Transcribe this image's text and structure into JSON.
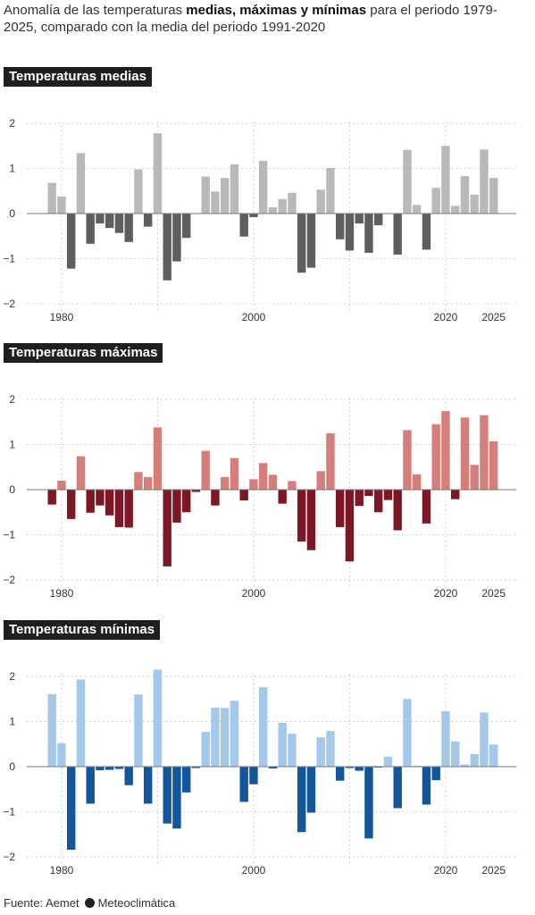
{
  "title": {
    "prefix": "Anomalía de las temperaturas ",
    "bold": "medias, máximas y mínimas",
    "suffix": " para el periodo 1979-2025, comparado con la media del periodo 1991-2020"
  },
  "source": {
    "text": "Fuente: Aemet",
    "brand": "Meteoclimática"
  },
  "chart_data": [
    {
      "type": "bar",
      "title": "Temperaturas medias",
      "x_ticks": [
        1980,
        2000,
        2020,
        2025
      ],
      "y_ticks": [
        2,
        1,
        0,
        -1,
        -2
      ],
      "ylim": [
        -2,
        2
      ],
      "grid": true,
      "colors": {
        "positive": "#b9b9b9",
        "negative": "#5e5e5e"
      },
      "x": [
        1979,
        1980,
        1981,
        1982,
        1983,
        1984,
        1985,
        1986,
        1987,
        1988,
        1989,
        1990,
        1991,
        1992,
        1993,
        1994,
        1995,
        1996,
        1997,
        1998,
        1999,
        2000,
        2001,
        2002,
        2003,
        2004,
        2005,
        2006,
        2007,
        2008,
        2009,
        2010,
        2011,
        2012,
        2013,
        2014,
        2015,
        2016,
        2017,
        2018,
        2019,
        2020,
        2021,
        2022,
        2023,
        2024,
        2025
      ],
      "values": [
        0.68,
        0.38,
        -1.22,
        1.34,
        -0.67,
        -0.22,
        -0.32,
        -0.43,
        -0.63,
        0.98,
        -0.29,
        1.78,
        -1.48,
        -1.06,
        -0.54,
        0.0,
        0.82,
        0.49,
        0.79,
        1.09,
        -0.51,
        -0.08,
        1.17,
        0.14,
        0.32,
        0.46,
        -1.31,
        -1.2,
        0.53,
        1.01,
        -0.57,
        -0.82,
        -0.22,
        -0.87,
        -0.26,
        0.0,
        -0.91,
        1.41,
        0.19,
        -0.8,
        0.57,
        1.5,
        0.17,
        0.83,
        0.42,
        1.42,
        0.79
      ]
    },
    {
      "type": "bar",
      "title": "Temperaturas máximas",
      "x_ticks": [
        1980,
        2000,
        2020,
        2025
      ],
      "y_ticks": [
        2,
        1,
        0,
        -1,
        -2
      ],
      "ylim": [
        -2,
        2
      ],
      "grid": true,
      "colors": {
        "positive": "#d47f7a",
        "negative": "#7d1725"
      },
      "x": [
        1979,
        1980,
        1981,
        1982,
        1983,
        1984,
        1985,
        1986,
        1987,
        1988,
        1989,
        1990,
        1991,
        1992,
        1993,
        1994,
        1995,
        1996,
        1997,
        1998,
        1999,
        2000,
        2001,
        2002,
        2003,
        2004,
        2005,
        2006,
        2007,
        2008,
        2009,
        2010,
        2011,
        2012,
        2013,
        2014,
        2015,
        2016,
        2017,
        2018,
        2019,
        2020,
        2021,
        2022,
        2023,
        2024,
        2025
      ],
      "values": [
        -0.33,
        0.2,
        -0.65,
        0.74,
        -0.51,
        -0.35,
        -0.57,
        -0.83,
        -0.84,
        0.39,
        0.28,
        1.38,
        -1.7,
        -0.73,
        -0.5,
        -0.05,
        0.86,
        -0.35,
        0.28,
        0.7,
        -0.24,
        0.23,
        0.59,
        0.33,
        -0.31,
        0.19,
        -1.15,
        -1.34,
        0.41,
        1.25,
        -0.83,
        -1.59,
        -0.36,
        -0.14,
        -0.5,
        -0.23,
        -0.9,
        1.32,
        0.34,
        -0.75,
        1.45,
        1.74,
        -0.21,
        1.6,
        0.55,
        1.65,
        1.07
      ]
    },
    {
      "type": "bar",
      "title": "Temperaturas mínimas",
      "x_ticks": [
        1980,
        2000,
        2020,
        2025
      ],
      "y_ticks": [
        2,
        1,
        0,
        -1,
        -2
      ],
      "ylim": [
        -2,
        2
      ],
      "grid": true,
      "colors": {
        "positive": "#a3c8e9",
        "negative": "#12569e"
      },
      "x": [
        1979,
        1980,
        1981,
        1982,
        1983,
        1984,
        1985,
        1986,
        1987,
        1988,
        1989,
        1990,
        1991,
        1992,
        1993,
        1994,
        1995,
        1996,
        1997,
        1998,
        1999,
        2000,
        2001,
        2002,
        2003,
        2004,
        2005,
        2006,
        2007,
        2008,
        2009,
        2010,
        2011,
        2012,
        2013,
        2014,
        2015,
        2016,
        2017,
        2018,
        2019,
        2020,
        2021,
        2022,
        2023,
        2024,
        2025
      ],
      "values": [
        1.61,
        0.52,
        -1.84,
        1.93,
        -0.82,
        -0.08,
        -0.07,
        -0.05,
        -0.41,
        1.6,
        -0.82,
        2.15,
        -1.26,
        -1.37,
        -0.57,
        -0.03,
        0.77,
        1.31,
        1.3,
        1.46,
        -0.78,
        -0.39,
        1.76,
        -0.04,
        0.97,
        0.73,
        -1.45,
        -1.02,
        0.65,
        0.79,
        -0.31,
        -0.03,
        -0.09,
        -1.59,
        -0.02,
        0.22,
        -0.92,
        1.5,
        0.02,
        -0.84,
        -0.3,
        1.23,
        0.56,
        0.05,
        0.28,
        1.2,
        0.49
      ]
    }
  ]
}
